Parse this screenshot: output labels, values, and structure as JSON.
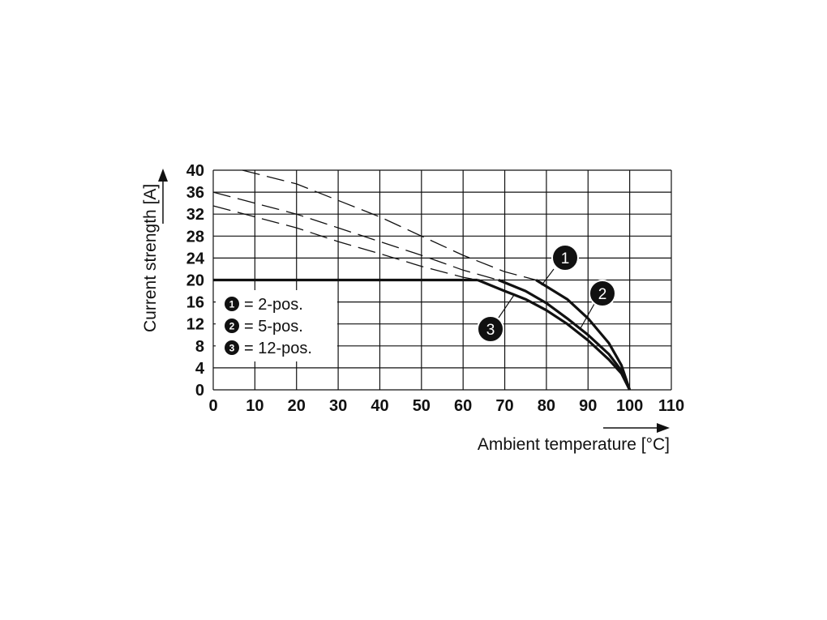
{
  "chart_data": {
    "type": "line",
    "xlabel": "Ambient temperature [°C]",
    "ylabel": "Current strength [A]",
    "xlim": [
      0,
      110
    ],
    "ylim": [
      0,
      40
    ],
    "x_ticks": [
      "0",
      "10",
      "20",
      "30",
      "40",
      "50",
      "60",
      "70",
      "80",
      "90",
      "100",
      "110"
    ],
    "y_ticks": [
      "0",
      "4",
      "8",
      "12",
      "16",
      "20",
      "24",
      "28",
      "32",
      "36",
      "40"
    ],
    "grid": true,
    "rated_limit": {
      "y": 20,
      "x": [
        0,
        100
      ]
    },
    "legend": {
      "placement": "left",
      "entries": [
        {
          "number": "1",
          "text": "= 2-pos."
        },
        {
          "number": "2",
          "text": "= 5-pos."
        },
        {
          "number": "3",
          "text": "= 12-pos."
        }
      ]
    },
    "series": [
      {
        "number": "1",
        "x": [
          7,
          20,
          30,
          40,
          50,
          60,
          70,
          77.5,
          85,
          90,
          95,
          98,
          100
        ],
        "y": [
          40,
          37.5,
          34.5,
          31.5,
          28,
          24.5,
          21.5,
          20,
          16.5,
          13,
          8.5,
          4.5,
          0
        ],
        "limit_x": 77.5
      },
      {
        "number": "2",
        "x": [
          0,
          10,
          20,
          30,
          40,
          50,
          60,
          68.5,
          75,
          80,
          85,
          90,
          95,
          98,
          100
        ],
        "y": [
          36,
          34,
          32,
          29.5,
          27,
          24.5,
          21.8,
          20,
          18,
          15.8,
          13,
          10,
          6.5,
          3.5,
          0
        ],
        "limit_x": 68.5
      },
      {
        "number": "3",
        "x": [
          0,
          10,
          20,
          30,
          40,
          50,
          60,
          63.5,
          70,
          75,
          80,
          85,
          90,
          95,
          98,
          100
        ],
        "y": [
          33.5,
          31.5,
          29.5,
          27,
          24.8,
          22.5,
          20.5,
          20,
          18,
          16.5,
          14.5,
          12,
          9,
          5.5,
          3,
          0
        ],
        "limit_x": 63.5
      }
    ]
  },
  "colors": {
    "line": "#111111",
    "grid": "#111111",
    "badge": "#111111",
    "badge_text": "#ffffff"
  }
}
